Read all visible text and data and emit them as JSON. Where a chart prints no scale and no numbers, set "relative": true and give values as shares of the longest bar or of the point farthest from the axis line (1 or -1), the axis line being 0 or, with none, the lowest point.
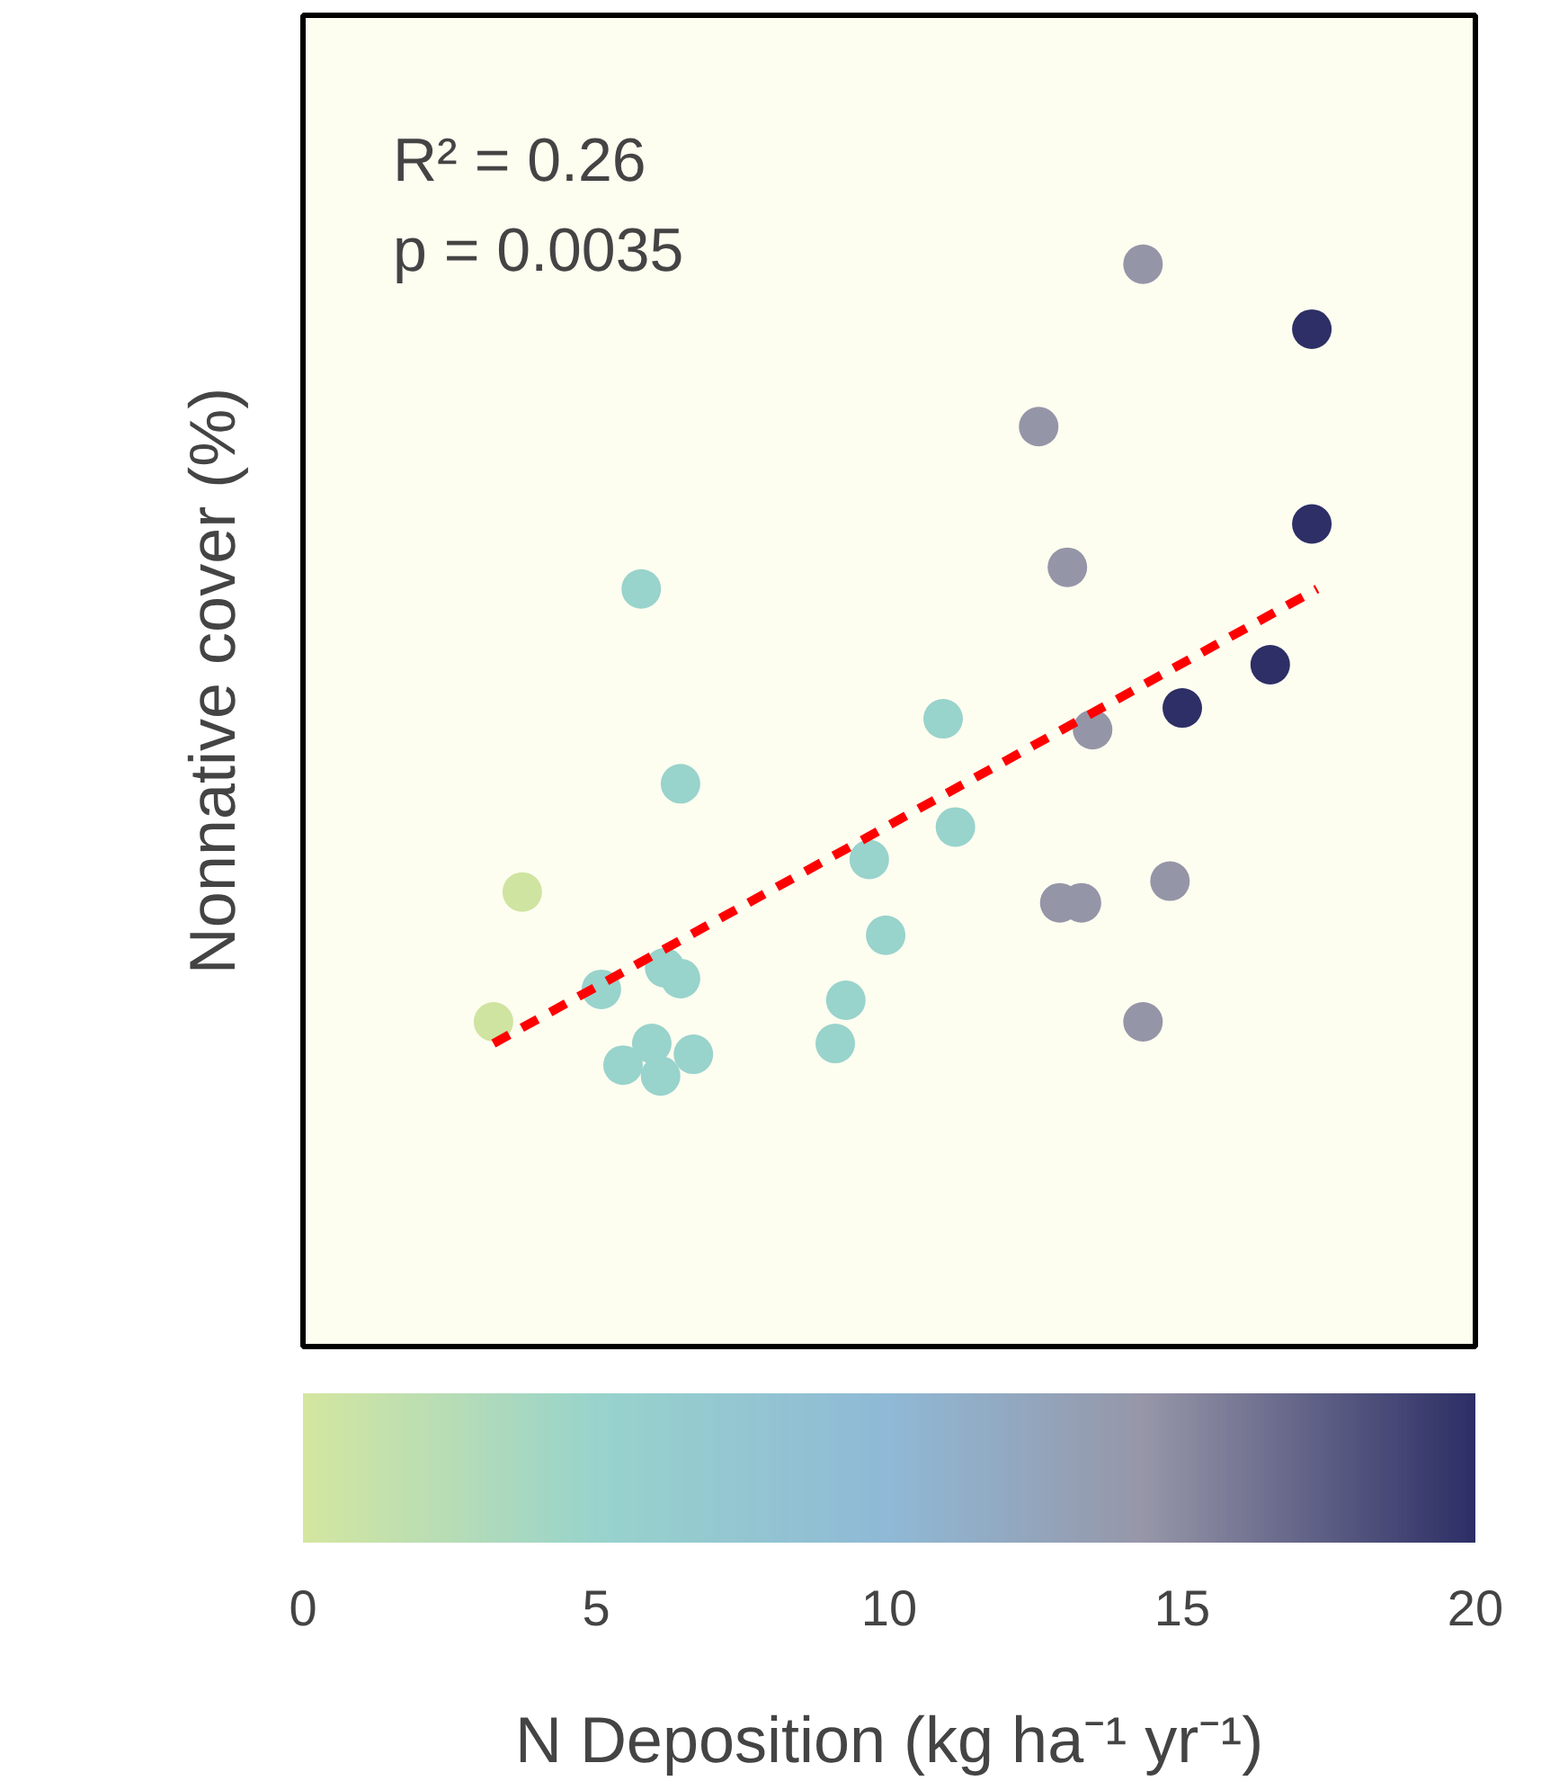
{
  "chart_data": {
    "type": "scatter",
    "relative": true,
    "xlabel": "N Deposition (kg ha⁻¹ yr⁻¹)",
    "ylabel": "Nonnative cover (%)",
    "xlim": [
      0,
      20
    ],
    "xticks": [
      0,
      5,
      10,
      15,
      20
    ],
    "tick_labels": "x",
    "annotations": [
      "R² = 0.26",
      "p = 0.0035"
    ],
    "series": [
      {
        "marker": "circle",
        "colors": [
          "#9595a8",
          "#2d2f66",
          "#9595a8",
          "#2d2f66",
          "#9595a8",
          "#98d3cc",
          "#2d2f66",
          "#2d2f66",
          "#98d3cc",
          "#9595a8",
          "#98d3cc",
          "#98d3cc",
          "#98d3cc",
          "#cfe4a0",
          "#9595a8",
          "#9595a8",
          "#9595a8",
          "#98d3cc",
          "#98d3cc",
          "#98d3cc",
          "#98d3cc",
          "#98d3cc",
          "#cfe4a0",
          "#9595a8",
          "#98d3cc",
          "#98d3cc",
          "#98d3cc",
          "#98d3cc",
          "#98d3cc"
        ],
        "x": [
          14.33,
          17.21,
          12.55,
          17.21,
          13.04,
          5.77,
          16.5,
          15.0,
          10.92,
          13.47,
          6.44,
          11.13,
          9.66,
          3.74,
          14.79,
          12.91,
          13.28,
          9.94,
          6.17,
          6.44,
          5.09,
          9.26,
          3.25,
          14.33,
          5.95,
          9.08,
          6.66,
          5.46,
          6.1
        ],
        "values": [
          1.0,
          0.94,
          0.85,
          0.76,
          0.72,
          0.7,
          0.63,
          0.59,
          0.58,
          0.57,
          0.52,
          0.48,
          0.45,
          0.42,
          0.43,
          0.41,
          0.41,
          0.38,
          0.35,
          0.34,
          0.33,
          0.32,
          0.3,
          0.3,
          0.28,
          0.28,
          0.27,
          0.26,
          0.25
        ]
      },
      {
        "type": "line",
        "x": [
          3.25,
          17.3
        ],
        "values": [
          0.28,
          0.7
        ],
        "color": "#ff0000",
        "line_style": "dashed",
        "marker": "none"
      }
    ]
  }
}
